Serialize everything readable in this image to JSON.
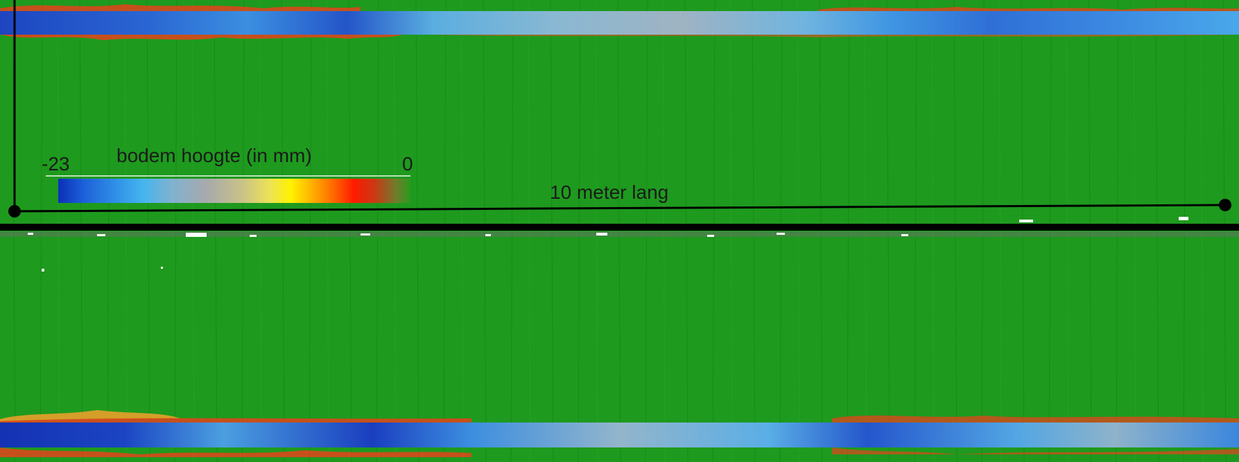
{
  "legend": {
    "title": "bodem hoogte (in mm)",
    "min_label": "-23",
    "max_label": "0",
    "colors": [
      "#0a2fb8",
      "#1c5fd8",
      "#2f8ee6",
      "#45b4ef",
      "#7fb2cf",
      "#a7a9ad",
      "#c9c189",
      "#ece257",
      "#fff200",
      "#ffb000",
      "#ff6a00",
      "#ff1a00",
      "#c83a15",
      "#6f7d2c",
      "#2b9a1d"
    ]
  },
  "scale_bar": {
    "label": "10 meter lang"
  },
  "colors": {
    "floor": "#1e9a1e",
    "divider": "#000000",
    "channel_blue": "#1d57c8",
    "channel_light": "#4aa4dc",
    "channel_grey": "#8fa8b8",
    "edge_red": "#d84418"
  }
}
